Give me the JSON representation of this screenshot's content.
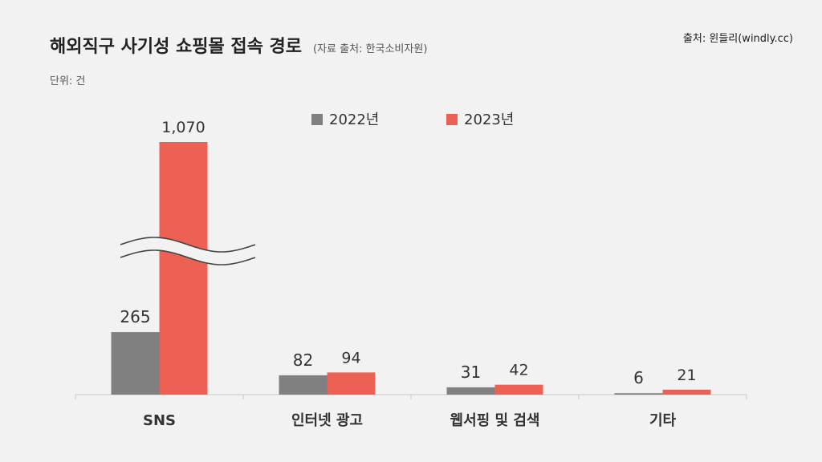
{
  "header": {
    "title": "해외직구 사기성 쇼핑몰 접속 경로",
    "subtitle": "(자료 출처: 한국소비자원)",
    "unit": "단위: 건",
    "source": "출처: 윈들리(windly.cc)"
  },
  "chart_data": {
    "type": "bar",
    "categories": [
      "SNS",
      "인터넷 광고",
      "웹서핑 및 검색",
      "기타"
    ],
    "series": [
      {
        "name": "2022년",
        "values": [
          265,
          82,
          31,
          6
        ],
        "labels": [
          "265",
          "82",
          "31",
          "6"
        ],
        "color": "#808080"
      },
      {
        "name": "2023년",
        "values": [
          1070,
          94,
          42,
          21
        ],
        "labels": [
          "1,070",
          "94",
          "42",
          "21"
        ],
        "color": "#ec6154"
      }
    ],
    "axis_break": true,
    "legend_position": "top-center",
    "grid": false
  }
}
